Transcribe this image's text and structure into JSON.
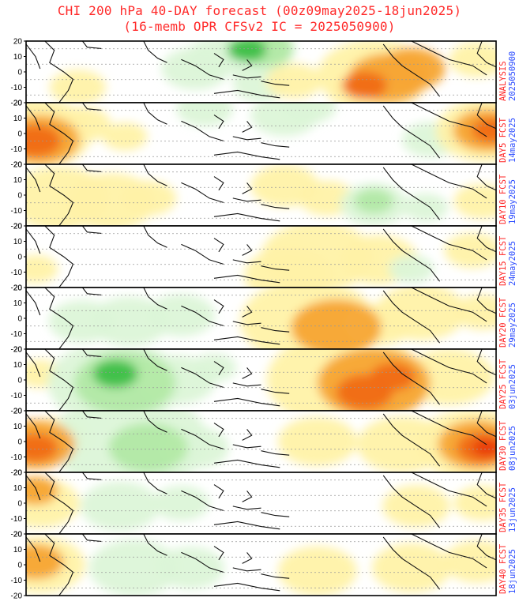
{
  "title_line1": "CHI 200 hPa 40-DAY forecast (00z09may2025-18jun2025)",
  "title_line2": "(16-memb OPR CFSv2 IC = 2025050900)",
  "colors": {
    "positive_light": "#fff2a8",
    "positive_mid": "#ffd870",
    "positive_strong": "#f7a534",
    "positive_max": "#f06a13",
    "negative_light": "#dcf5d8",
    "negative_mid": "#b2e9a5",
    "negative_strong": "#7ed87a",
    "negative_max": "#3cbf46",
    "label_red": "#ff2222",
    "label_blue": "#2a4bff"
  },
  "chart_data": {
    "type": "heatmap",
    "variable": "CHI 200 hPa",
    "panel_count": 9,
    "y_ticks": [
      "20",
      "10",
      "0",
      "-10",
      "-20"
    ],
    "ylim": [
      -20,
      20
    ],
    "panels": [
      {
        "label": "ANALYSIS",
        "date": "2025050900",
        "blobs": [
          {
            "x": 0.11,
            "y": 0.75,
            "r": 0.05,
            "v": 1
          },
          {
            "x": 0.36,
            "y": 0.45,
            "r": 0.06,
            "v": -1
          },
          {
            "x": 0.5,
            "y": 0.7,
            "r": 0.05,
            "v": -1
          },
          {
            "x": 0.48,
            "y": 0.2,
            "r": 0.07,
            "v": -1
          },
          {
            "x": 0.4,
            "y": 0.25,
            "r": 0.05,
            "v": -1
          },
          {
            "x": 0.51,
            "y": 0.13,
            "r": 0.05,
            "v": -2
          },
          {
            "x": 0.47,
            "y": 0.14,
            "r": 0.035,
            "v": -3
          },
          {
            "x": 0.57,
            "y": 0.65,
            "r": 0.05,
            "v": 1
          },
          {
            "x": 0.7,
            "y": 0.8,
            "r": 0.05,
            "v": 1
          },
          {
            "x": 0.74,
            "y": 0.55,
            "r": 0.1,
            "v": 1
          },
          {
            "x": 0.77,
            "y": 0.6,
            "r": 0.07,
            "v": 2
          },
          {
            "x": 0.72,
            "y": 0.72,
            "r": 0.04,
            "v": 3
          },
          {
            "x": 0.82,
            "y": 0.45,
            "r": 0.06,
            "v": 2
          },
          {
            "x": 0.96,
            "y": 0.3,
            "r": 0.05,
            "v": 1
          }
        ]
      },
      {
        "label": "DAY5 FCST",
        "date": "14may2025",
        "blobs": [
          {
            "x": 0.02,
            "y": 0.5,
            "r": 0.1,
            "v": 1
          },
          {
            "x": 0.03,
            "y": 0.6,
            "r": 0.07,
            "v": 2
          },
          {
            "x": 0.02,
            "y": 0.62,
            "r": 0.045,
            "v": 3
          },
          {
            "x": 0.12,
            "y": 0.35,
            "r": 0.05,
            "v": 1
          },
          {
            "x": 0.21,
            "y": 0.55,
            "r": 0.04,
            "v": 1
          },
          {
            "x": 0.38,
            "y": 0.1,
            "r": 0.05,
            "v": -1
          },
          {
            "x": 0.55,
            "y": 0.2,
            "r": 0.06,
            "v": -1
          },
          {
            "x": 0.6,
            "y": 0.06,
            "r": 0.05,
            "v": -1
          },
          {
            "x": 0.86,
            "y": 0.6,
            "r": 0.05,
            "v": -1
          },
          {
            "x": 0.98,
            "y": 0.45,
            "r": 0.09,
            "v": 1
          },
          {
            "x": 0.98,
            "y": 0.45,
            "r": 0.06,
            "v": 2
          },
          {
            "x": 0.99,
            "y": 0.45,
            "r": 0.035,
            "v": 3
          }
        ]
      },
      {
        "label": "DAY10 FCST",
        "date": "19may2025",
        "blobs": [
          {
            "x": 0.07,
            "y": 0.55,
            "r": 0.09,
            "v": 1
          },
          {
            "x": 0.18,
            "y": 0.6,
            "r": 0.08,
            "v": 1
          },
          {
            "x": 0.26,
            "y": 0.55,
            "r": 0.05,
            "v": 1
          },
          {
            "x": 0.55,
            "y": 0.35,
            "r": 0.06,
            "v": 1
          },
          {
            "x": 0.64,
            "y": 0.55,
            "r": 0.05,
            "v": 1
          },
          {
            "x": 0.74,
            "y": 0.65,
            "r": 0.06,
            "v": -1
          },
          {
            "x": 0.74,
            "y": 0.6,
            "r": 0.035,
            "v": -2
          },
          {
            "x": 0.85,
            "y": 0.7,
            "r": 0.04,
            "v": -1
          },
          {
            "x": 0.97,
            "y": 0.6,
            "r": 0.05,
            "v": 1
          }
        ]
      },
      {
        "label": "DAY15 FCST",
        "date": "24may2025",
        "blobs": [
          {
            "x": 0.02,
            "y": 0.7,
            "r": 0.04,
            "v": 1
          },
          {
            "x": 0.56,
            "y": 0.8,
            "r": 0.08,
            "v": 1
          },
          {
            "x": 0.62,
            "y": 0.5,
            "r": 0.1,
            "v": 1
          },
          {
            "x": 0.75,
            "y": 0.55,
            "r": 0.07,
            "v": 1
          },
          {
            "x": 0.82,
            "y": 0.7,
            "r": 0.04,
            "v": -1
          },
          {
            "x": 0.95,
            "y": 0.4,
            "r": 0.05,
            "v": 1
          }
        ]
      },
      {
        "label": "DAY20 FCST",
        "date": "29may2025",
        "blobs": [
          {
            "x": 0.12,
            "y": 0.55,
            "r": 0.06,
            "v": -1
          },
          {
            "x": 0.22,
            "y": 0.55,
            "r": 0.07,
            "v": -1
          },
          {
            "x": 0.33,
            "y": 0.45,
            "r": 0.06,
            "v": -1
          },
          {
            "x": 0.6,
            "y": 0.55,
            "r": 0.12,
            "v": 1
          },
          {
            "x": 0.66,
            "y": 0.65,
            "r": 0.08,
            "v": 2
          },
          {
            "x": 0.75,
            "y": 0.6,
            "r": 0.06,
            "v": 1
          },
          {
            "x": 0.84,
            "y": 0.4,
            "r": 0.08,
            "v": 1
          },
          {
            "x": 0.97,
            "y": 0.4,
            "r": 0.05,
            "v": 1
          }
        ]
      },
      {
        "label": "DAY25 FCST",
        "date": "03jun2025",
        "blobs": [
          {
            "x": 0.03,
            "y": 0.4,
            "r": 0.04,
            "v": 1
          },
          {
            "x": 0.19,
            "y": 0.55,
            "r": 0.12,
            "v": -1
          },
          {
            "x": 0.21,
            "y": 0.55,
            "r": 0.09,
            "v": -2
          },
          {
            "x": 0.19,
            "y": 0.4,
            "r": 0.04,
            "v": -3
          },
          {
            "x": 0.32,
            "y": 0.5,
            "r": 0.07,
            "v": -1
          },
          {
            "x": 0.4,
            "y": 0.3,
            "r": 0.04,
            "v": -1
          },
          {
            "x": 0.68,
            "y": 0.5,
            "r": 0.14,
            "v": 1
          },
          {
            "x": 0.74,
            "y": 0.55,
            "r": 0.1,
            "v": 2
          },
          {
            "x": 0.72,
            "y": 0.7,
            "r": 0.05,
            "v": 3
          },
          {
            "x": 0.78,
            "y": 0.45,
            "r": 0.04,
            "v": 3
          },
          {
            "x": 0.9,
            "y": 0.45,
            "r": 0.08,
            "v": 1
          }
        ]
      },
      {
        "label": "DAY30 FCST",
        "date": "08jun2025",
        "blobs": [
          {
            "x": 0.02,
            "y": 0.55,
            "r": 0.07,
            "v": 2
          },
          {
            "x": 0.02,
            "y": 0.6,
            "r": 0.04,
            "v": 3
          },
          {
            "x": 0.06,
            "y": 0.45,
            "r": 0.06,
            "v": 1
          },
          {
            "x": 0.22,
            "y": 0.5,
            "r": 0.14,
            "v": -1
          },
          {
            "x": 0.26,
            "y": 0.6,
            "r": 0.07,
            "v": -2
          },
          {
            "x": 0.36,
            "y": 0.6,
            "r": 0.06,
            "v": -1
          },
          {
            "x": 0.62,
            "y": 0.5,
            "r": 0.07,
            "v": 1
          },
          {
            "x": 0.8,
            "y": 0.55,
            "r": 0.08,
            "v": 1
          },
          {
            "x": 0.95,
            "y": 0.55,
            "r": 0.1,
            "v": 1
          },
          {
            "x": 0.96,
            "y": 0.55,
            "r": 0.07,
            "v": 2
          },
          {
            "x": 0.97,
            "y": 0.6,
            "r": 0.045,
            "v": 3
          },
          {
            "x": 0.98,
            "y": 0.6,
            "r": 0.025,
            "v": 4
          }
        ]
      },
      {
        "label": "DAY35 FCST",
        "date": "13jun2025",
        "blobs": [
          {
            "x": 0.03,
            "y": 0.5,
            "r": 0.07,
            "v": 1
          },
          {
            "x": 0.02,
            "y": 0.3,
            "r": 0.04,
            "v": 2
          },
          {
            "x": 0.2,
            "y": 0.55,
            "r": 0.07,
            "v": -1
          },
          {
            "x": 0.33,
            "y": 0.5,
            "r": 0.05,
            "v": -1
          },
          {
            "x": 0.83,
            "y": 0.55,
            "r": 0.06,
            "v": 1
          },
          {
            "x": 0.97,
            "y": 0.5,
            "r": 0.05,
            "v": 1
          }
        ]
      },
      {
        "label": "DAY40 FCST",
        "date": "18jun2025",
        "blobs": [
          {
            "x": 0.03,
            "y": 0.5,
            "r": 0.08,
            "v": 1
          },
          {
            "x": 0.02,
            "y": 0.45,
            "r": 0.05,
            "v": 2
          },
          {
            "x": 0.23,
            "y": 0.55,
            "r": 0.08,
            "v": -1
          },
          {
            "x": 0.35,
            "y": 0.55,
            "r": 0.06,
            "v": -1
          },
          {
            "x": 0.62,
            "y": 0.6,
            "r": 0.07,
            "v": 1
          },
          {
            "x": 0.82,
            "y": 0.55,
            "r": 0.07,
            "v": 1
          },
          {
            "x": 0.96,
            "y": 0.45,
            "r": 0.06,
            "v": 1
          }
        ]
      }
    ]
  }
}
